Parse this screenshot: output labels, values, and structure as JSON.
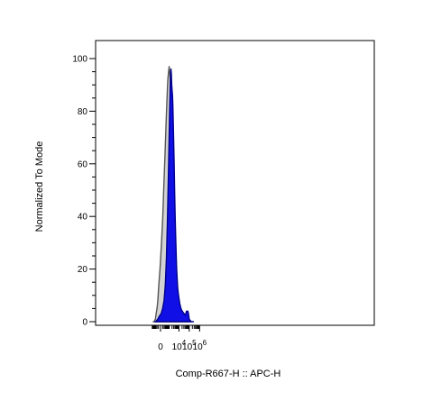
{
  "chart_data": {
    "type": "area",
    "xlabel": "Comp-R667-H :: APC-H",
    "ylabel": "Normalized To Mode",
    "ylim": [
      0,
      100
    ],
    "x_scale": "biexponential",
    "y_ticks": [
      "0",
      "20",
      "40",
      "60",
      "80",
      "100"
    ],
    "x_ticks": [
      {
        "base": "0",
        "exp": ""
      },
      {
        "base": "10",
        "exp": "4"
      },
      {
        "base": "10",
        "exp": "5"
      },
      {
        "base": "10",
        "exp": "6"
      }
    ],
    "grid": false,
    "legend": "none",
    "series": [
      {
        "fill": "#d3d3d3",
        "stroke": "#555555",
        "x": [
          -700,
          -540,
          -440,
          -360,
          -280,
          -200,
          -140,
          -80,
          -20,
          40,
          110,
          190,
          290,
          420,
          560,
          700,
          850,
          1000,
          1150,
          1300,
          1480,
          1650,
          1820,
          2000,
          2200,
          2450,
          2750,
          3100,
          3500,
          4000,
          4600,
          5300,
          6200,
          7300,
          8700,
          10400,
          12500,
          15000,
          18000,
          22000,
          27000,
          33000,
          40000,
          48000,
          58000,
          70000,
          85000,
          100000,
          140000
        ],
        "y": [
          0,
          0,
          0.5,
          1,
          3,
          5,
          8,
          14,
          20,
          30,
          40,
          52,
          64,
          76,
          86,
          92,
          95,
          97,
          95,
          92,
          86,
          76,
          64,
          50,
          38,
          27,
          19,
          15,
          12,
          10,
          9,
          8,
          7,
          6,
          5,
          4,
          3.5,
          3,
          2.5,
          2,
          1.5,
          1,
          1,
          0.5,
          0.5,
          0,
          0,
          0,
          0
        ]
      },
      {
        "fill": "#1010e6",
        "stroke": "#00008b",
        "x": [
          -420,
          -330,
          -230,
          -140,
          -60,
          20,
          100,
          200,
          320,
          460,
          610,
          780,
          950,
          1100,
          1250,
          1400,
          1560,
          1720,
          1880,
          2050,
          2250,
          2450,
          2700,
          3000,
          3300,
          3700,
          4100,
          4500,
          5000,
          5500,
          6000,
          6700,
          7500,
          8500,
          10000,
          12000,
          14500,
          17500,
          21000,
          26000,
          32000,
          39000,
          46000,
          54000,
          63000,
          73000,
          85000,
          100000,
          120000,
          160000,
          250000
        ],
        "y": [
          0,
          0,
          0.5,
          1,
          2,
          3,
          5,
          8,
          14,
          24,
          38,
          54,
          68,
          79,
          88,
          94,
          96,
          94,
          90,
          88,
          86,
          82,
          76,
          68,
          60,
          50,
          42,
          36,
          30,
          24,
          20,
          16,
          13,
          11,
          9,
          7,
          5.5,
          4.5,
          4,
          3.5,
          3,
          2.5,
          3,
          4,
          4,
          4,
          3,
          1,
          0.5,
          0,
          0
        ]
      }
    ]
  }
}
